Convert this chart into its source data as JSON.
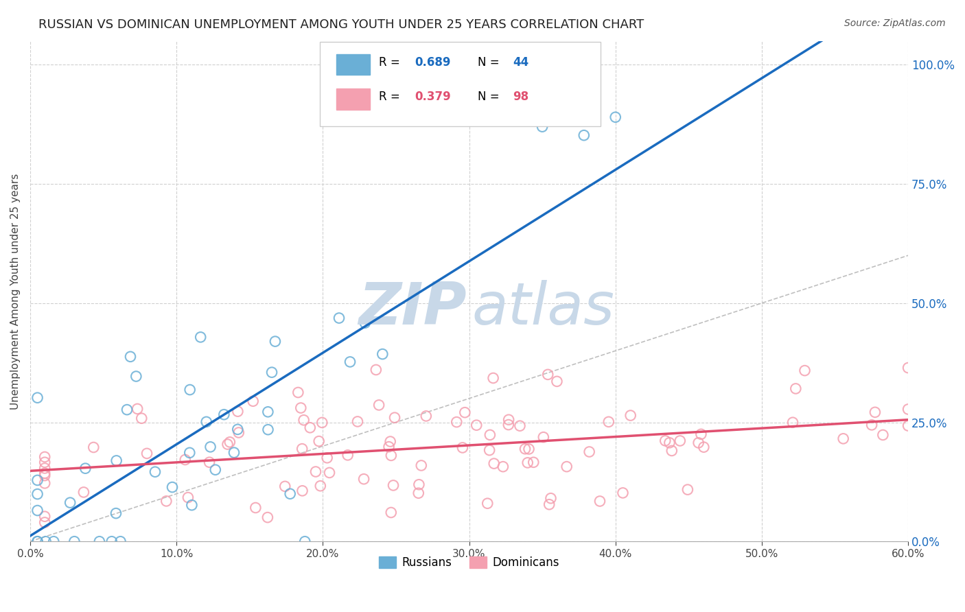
{
  "title": "RUSSIAN VS DOMINICAN UNEMPLOYMENT AMONG YOUTH UNDER 25 YEARS CORRELATION CHART",
  "source": "Source: ZipAtlas.com",
  "ylabel": "Unemployment Among Youth under 25 years",
  "xlim": [
    0.0,
    0.6
  ],
  "ylim": [
    0.0,
    1.05
  ],
  "xtick_labels": [
    "0.0%",
    "10.0%",
    "20.0%",
    "30.0%",
    "40.0%",
    "50.0%",
    "60.0%"
  ],
  "xtick_vals": [
    0.0,
    0.1,
    0.2,
    0.3,
    0.4,
    0.5,
    0.6
  ],
  "ytick_labels_right": [
    "0.0%",
    "25.0%",
    "50.0%",
    "75.0%",
    "100.0%"
  ],
  "ytick_vals_right": [
    0.0,
    0.25,
    0.5,
    0.75,
    1.0
  ],
  "russian_R": 0.689,
  "russian_N": 44,
  "dominican_R": 0.379,
  "dominican_N": 98,
  "russian_color": "#6aafd6",
  "dominican_color": "#f4a0b0",
  "regression_line_color_russian": "#1a6bbf",
  "regression_line_color_dominican": "#e05070",
  "diagonal_color": "#b8b8b8",
  "background_color": "#ffffff",
  "grid_color": "#d0d0d0",
  "watermark_zip_color": "#c8d8e8",
  "watermark_atlas_color": "#c8d8e8",
  "title_color": "#222222",
  "source_color": "#555555",
  "legend_R_color_russian": "#1a6bbf",
  "legend_N_color_russian": "#1a6bbf",
  "legend_R_color_dominican": "#e05070",
  "legend_N_color_dominican": "#e05070",
  "right_axis_color": "#1a6bbf"
}
